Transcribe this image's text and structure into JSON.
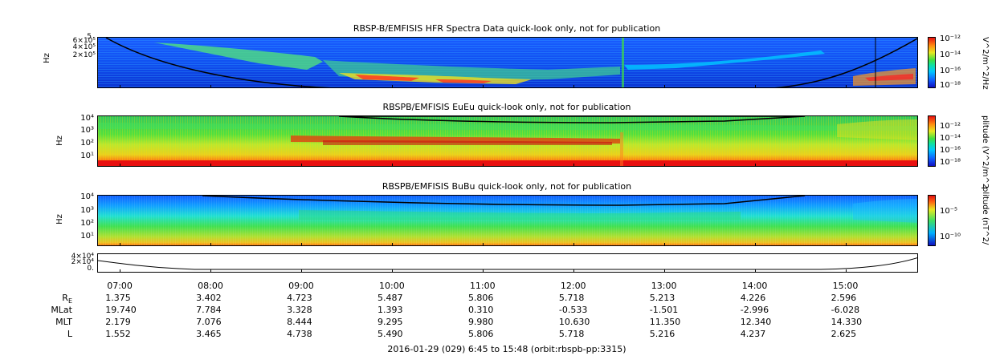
{
  "panels": [
    {
      "title": "RBSP-B/EMFISIS  HFR Spectra Data quick-look only, not for publication",
      "ylabel": "Hz",
      "yticks": [
        "5",
        "6×10⁵",
        "4×10⁵",
        "2×10⁵"
      ],
      "cbar_ticks": [
        "10⁻¹²",
        "10⁻¹⁴",
        "10⁻¹⁶",
        "10⁻¹⁸"
      ],
      "cbar_label": "V^2/m^2/Hz"
    },
    {
      "title": "RBSPB/EMFISIS  EuEu quick-look only, not for publication",
      "ylabel": "Hz",
      "yticks": [
        "10⁴",
        "10³",
        "10²",
        "10¹"
      ],
      "cbar_ticks": [
        "10⁻¹²",
        "10⁻¹⁴",
        "10⁻¹⁶",
        "10⁻¹⁸"
      ],
      "cbar_label": "plitude (V^2/m^2"
    },
    {
      "title": "RBSPB/EMFISIS  BuBu quick-look only, not for publication",
      "ylabel": "Hz",
      "yticks": [
        "10⁴",
        "10³",
        "10²",
        "10¹"
      ],
      "cbar_ticks": [
        "10⁻⁵",
        "10⁻¹⁰"
      ],
      "cbar_label": "plitude (nT^2/"
    }
  ],
  "line_panel": {
    "yticks": [
      "4×10⁴",
      "2×10⁴",
      "0."
    ]
  },
  "chart_data": {
    "type": "heatmap",
    "x_ticks": [
      "07:00",
      "08:00",
      "09:00",
      "10:00",
      "11:00",
      "12:00",
      "13:00",
      "14:00",
      "15:00"
    ],
    "time_range": [
      "06:45",
      "15:48"
    ],
    "ephemeris": {
      "row_labels": [
        "R_E",
        "MLat",
        "MLT",
        "L"
      ],
      "RE": [
        "1.375",
        "3.402",
        "4.723",
        "5.487",
        "5.806",
        "5.718",
        "5.213",
        "4.226",
        "2.596"
      ],
      "MLat": [
        "19.740",
        "7.784",
        "3.328",
        "1.393",
        "0.310",
        "-0.533",
        "-1.501",
        "-2.996",
        "-6.028"
      ],
      "MLT": [
        "2.179",
        "7.076",
        "8.444",
        "9.295",
        "9.980",
        "10.630",
        "11.350",
        "12.340",
        "14.330"
      ],
      "L": [
        "1.552",
        "3.465",
        "4.738",
        "5.490",
        "5.806",
        "5.718",
        "5.216",
        "4.237",
        "2.625"
      ]
    },
    "footer": "2016-01-29 (029) 6:45 to 15:48 (orbit:rbspb-pp:3315)"
  }
}
